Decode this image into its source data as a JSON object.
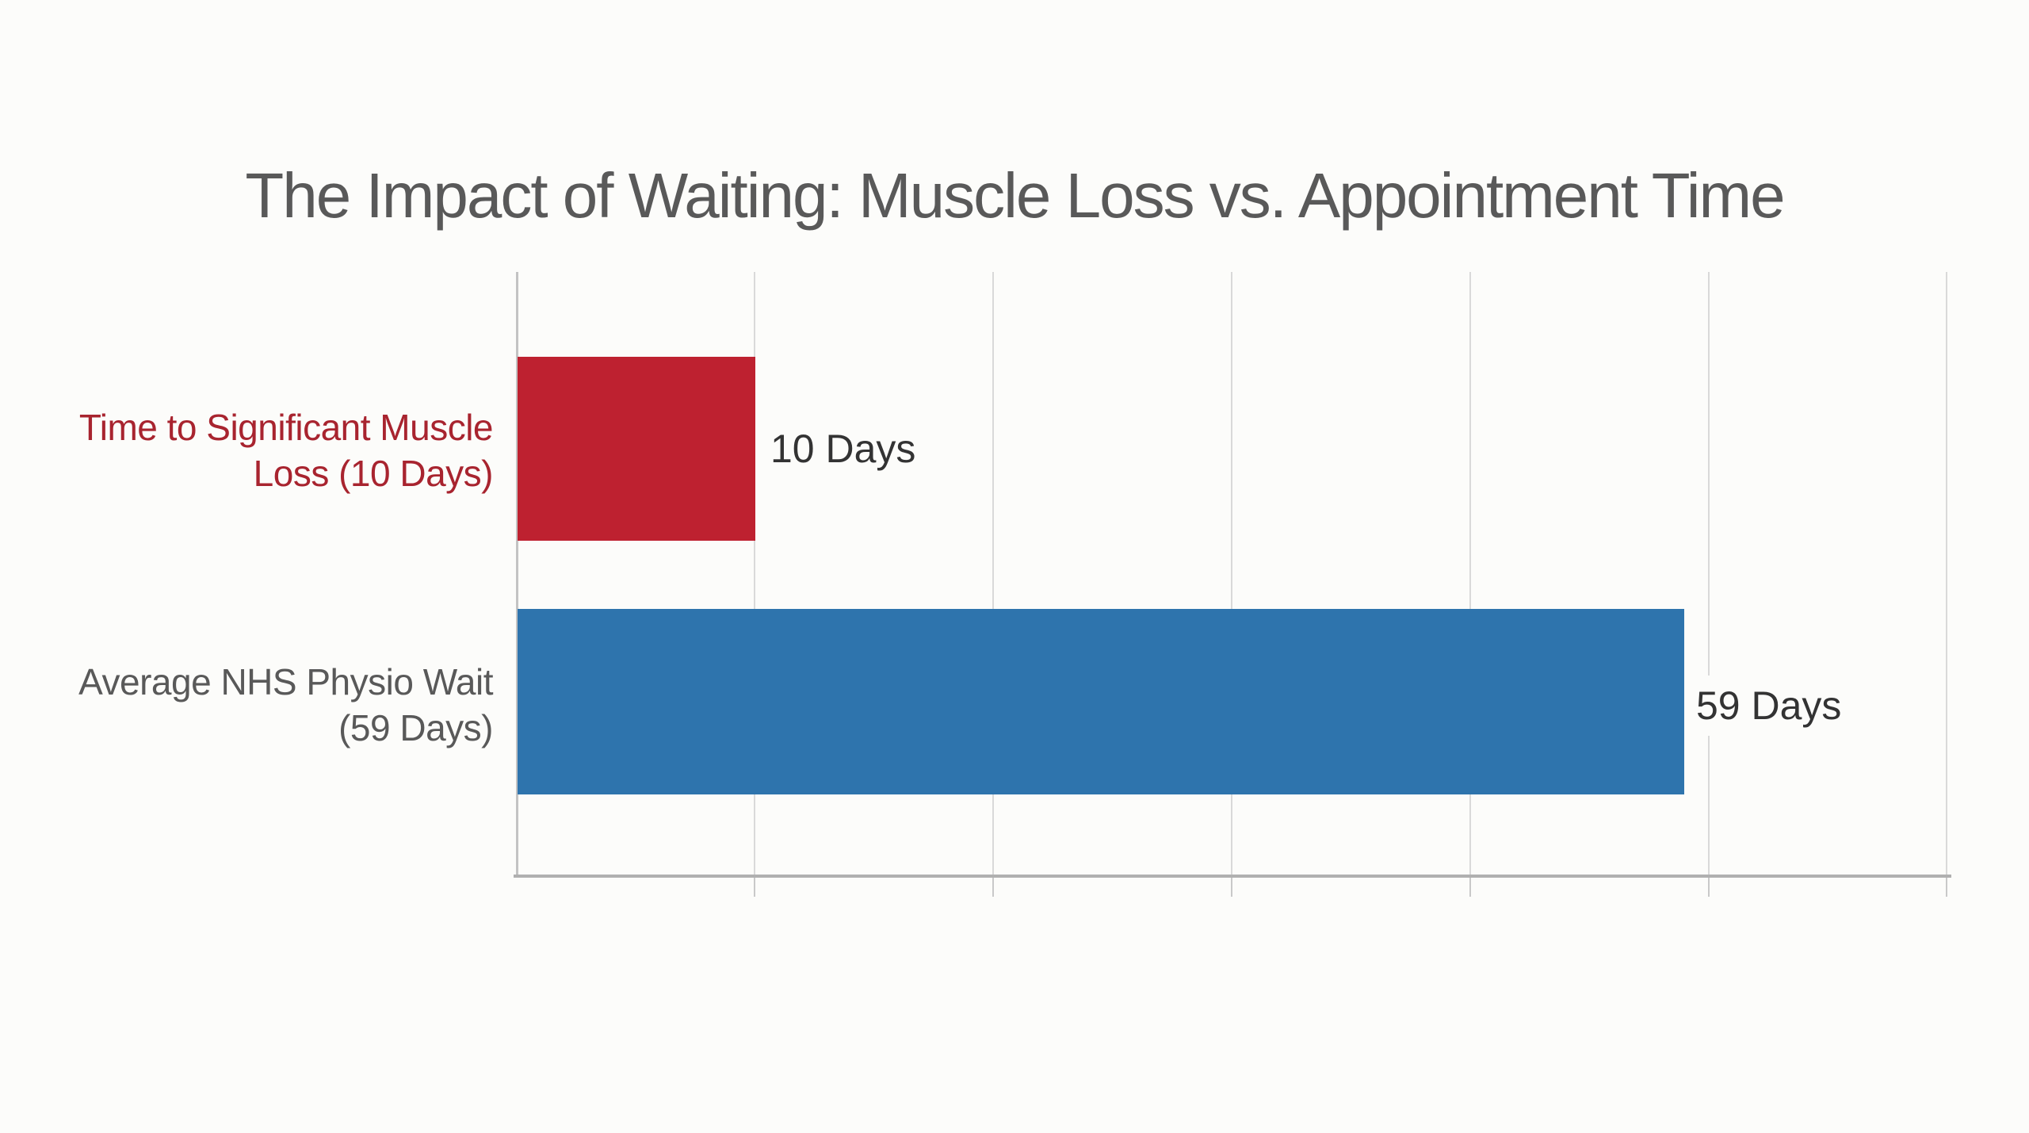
{
  "page": {
    "background_color": "#FCFCFA"
  },
  "chart": {
    "title": "The Impact of Waiting: Muscle Loss vs. Appointment Time",
    "title_color": "#595959",
    "bars": [
      {
        "category_line1": "Time to Significant Muscle",
        "category_line2": "Loss (10 Days)",
        "category_color": "#A8242F",
        "value": 10,
        "value_label": "10 Days",
        "bar_color": "#BE2130"
      },
      {
        "category_line1": "Average NHS Physio Wait",
        "category_line2": "(59 Days)",
        "category_color": "#595959",
        "value": 59,
        "value_label": "59 Days",
        "bar_color": "#2E74AD"
      }
    ],
    "axis": {
      "gridline_color": "#D9D9D9",
      "baseline_color": "#B0B0B0",
      "vertical_gridline_count": 7,
      "tick_labels_visible": false
    }
  },
  "chart_data": {
    "type": "bar",
    "orientation": "horizontal",
    "title": "The Impact of Waiting: Muscle Loss vs. Appointment Time",
    "categories": [
      "Time to Significant Muscle Loss (10 Days)",
      "Average NHS Physio Wait (59 Days)"
    ],
    "values": [
      10,
      59
    ],
    "unit": "days",
    "data_labels": [
      "10 Days",
      "59 Days"
    ],
    "bar_colors": [
      "#BE2130",
      "#2E74AD"
    ],
    "category_label_colors": [
      "#A8242F",
      "#595959"
    ],
    "xlabel": "",
    "ylabel": "",
    "x_tick_labels": [],
    "grid": "vertical gridlines only, evenly spaced, no numeric axis labels",
    "legend": false
  }
}
